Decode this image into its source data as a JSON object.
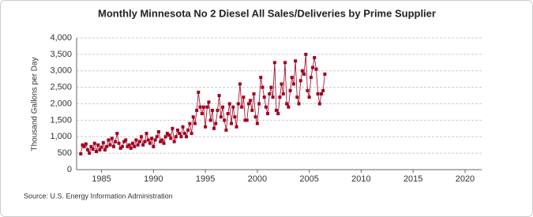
{
  "chart_data": {
    "type": "line",
    "title": "Monthly Minnesota No 2 Diesel All Sales/Deliveries by Prime Supplier",
    "y_label": "Thousand Gallons per Day",
    "source": "Source: U.S. Energy Information Administration",
    "x": [
      1983.0,
      1983.17,
      1983.33,
      1983.5,
      1983.67,
      1983.83,
      1984.0,
      1984.17,
      1984.33,
      1984.5,
      1984.67,
      1984.83,
      1985.0,
      1985.17,
      1985.33,
      1985.5,
      1985.67,
      1985.83,
      1986.0,
      1986.17,
      1986.33,
      1986.5,
      1986.67,
      1986.83,
      1987.0,
      1987.17,
      1987.33,
      1987.5,
      1987.67,
      1987.83,
      1988.0,
      1988.17,
      1988.33,
      1988.5,
      1988.67,
      1988.83,
      1989.0,
      1989.17,
      1989.33,
      1989.5,
      1989.67,
      1989.83,
      1990.0,
      1990.17,
      1990.33,
      1990.5,
      1990.67,
      1990.83,
      1991.0,
      1991.17,
      1991.33,
      1991.5,
      1991.67,
      1991.83,
      1992.0,
      1992.17,
      1992.33,
      1992.5,
      1992.67,
      1992.83,
      1993.0,
      1993.17,
      1993.33,
      1993.5,
      1993.67,
      1993.83,
      1994.0,
      1994.17,
      1994.33,
      1994.5,
      1994.67,
      1994.83,
      1995.0,
      1995.17,
      1995.33,
      1995.5,
      1995.67,
      1995.83,
      1996.0,
      1996.17,
      1996.33,
      1996.5,
      1996.67,
      1996.83,
      1997.0,
      1997.17,
      1997.33,
      1997.5,
      1997.67,
      1997.83,
      1998.0,
      1998.17,
      1998.33,
      1998.5,
      1998.67,
      1998.83,
      1999.0,
      1999.17,
      1999.33,
      1999.5,
      1999.67,
      1999.83,
      2000.0,
      2000.17,
      2000.33,
      2000.5,
      2000.67,
      2000.83,
      2001.0,
      2001.17,
      2001.33,
      2001.5,
      2001.67,
      2001.83,
      2002.0,
      2002.17,
      2002.33,
      2002.5,
      2002.67,
      2002.83,
      2003.0,
      2003.17,
      2003.33,
      2003.5,
      2003.67,
      2003.83,
      2004.0,
      2004.17,
      2004.33,
      2004.5,
      2004.67,
      2004.83,
      2005.0,
      2005.17,
      2005.33,
      2005.5,
      2005.67,
      2005.83,
      2006.0,
      2006.17,
      2006.33,
      2006.5
    ],
    "series": [
      {
        "name": "Minnesota No 2 Diesel",
        "color": "#a00020",
        "values": [
          480,
          750,
          700,
          780,
          600,
          500,
          700,
          620,
          800,
          550,
          750,
          600,
          680,
          820,
          600,
          700,
          900,
          750,
          950,
          700,
          850,
          1100,
          800,
          650,
          700,
          850,
          900,
          700,
          750,
          650,
          800,
          700,
          900,
          750,
          850,
          1000,
          750,
          850,
          1100,
          900,
          800,
          950,
          700,
          900,
          1000,
          1150,
          850,
          900,
          800,
          1000,
          1100,
          1050,
          950,
          1250,
          850,
          1000,
          1200,
          1100,
          1000,
          1300,
          1100,
          1000,
          1200,
          1400,
          1100,
          1600,
          1400,
          1800,
          2350,
          1900,
          1700,
          1900,
          1300,
          1900,
          2050,
          1500,
          1800,
          1250,
          1400,
          1800,
          2250,
          1600,
          1900,
          1500,
          1200,
          1700,
          2000,
          1400,
          1900,
          1600,
          1300,
          2000,
          2600,
          1900,
          2200,
          1500,
          1500,
          2000,
          2100,
          1800,
          2300,
          1600,
          1400,
          2000,
          2800,
          2500,
          2200,
          1900,
          1700,
          2300,
          2500,
          2200,
          3250,
          1800,
          1700,
          2200,
          2600,
          2300,
          3250,
          2000,
          1900,
          2400,
          2800,
          2600,
          3300,
          2200,
          2000,
          2700,
          3000,
          2900,
          3500,
          2400,
          2200,
          2800,
          3100,
          3400,
          3050,
          2300,
          2000,
          2300,
          2400,
          2900
        ]
      }
    ],
    "xlim": [
      1982.6,
      2021.6
    ],
    "xticks": [
      1985,
      1990,
      1995,
      2000,
      2005,
      2010,
      2015,
      2020
    ],
    "ylim": [
      0,
      4000
    ],
    "yticks": [
      0,
      500,
      {
        "value": 1000,
        "label": "1,000"
      },
      {
        "value": 1500,
        "label": "1,500"
      },
      {
        "value": 2000,
        "label": "2,000"
      },
      {
        "value": 2500,
        "label": "2,500"
      },
      {
        "value": 3000,
        "label": "3,000"
      },
      {
        "value": 3500,
        "label": "3,500"
      },
      {
        "value": 4000,
        "label": "4,000"
      }
    ],
    "grid": true
  }
}
